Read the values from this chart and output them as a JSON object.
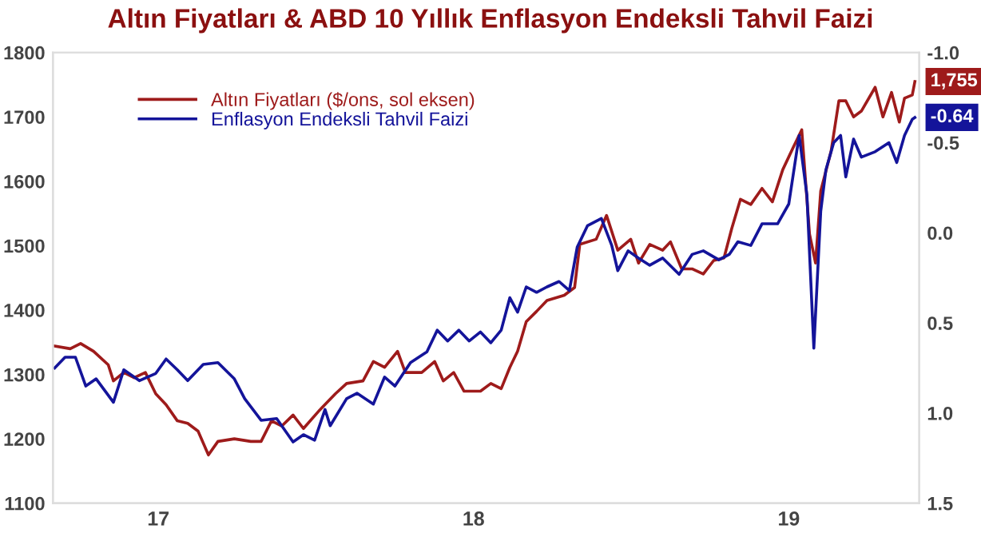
{
  "chart_data": {
    "type": "line",
    "title": "Altın Fiyatları & ABD 10 Yıllık Enflasyon Endeksli Tahvil Faizi",
    "xlim": [
      "2016-09-01",
      "2019-06-01"
    ],
    "xticks": [
      {
        "value": "2017-01-01",
        "label": "17"
      },
      {
        "value": "2018-01-01",
        "label": "18"
      },
      {
        "value": "2019-01-01",
        "label": "19"
      }
    ],
    "ylim": [
      1100,
      1800
    ],
    "yticks": [
      1100,
      1200,
      1300,
      1400,
      1500,
      1600,
      1700,
      1800
    ],
    "y2lim": [
      1.5,
      -1.0
    ],
    "y2ticks": [
      {
        "value": -1.0,
        "label": "-1.0"
      },
      -0.5,
      {
        "value": 0.0,
        "label": "0.0"
      },
      0.5,
      {
        "value": 1.0,
        "label": "1.0"
      },
      1.5
    ],
    "legend": "top left",
    "grid": false,
    "series": [
      {
        "name": "Altın Fiyatları ($/ons, sol eksen)",
        "color": "#9e1b1b",
        "x": [
          "2016-09-03",
          "2016-09-21",
          "2016-10-03",
          "2016-10-18",
          "2016-11-04",
          "2016-11-10",
          "2016-11-22",
          "2016-12-04",
          "2016-12-17",
          "2016-12-29",
          "2017-01-10",
          "2017-01-23",
          "2017-02-04",
          "2017-02-16",
          "2017-02-28",
          "2017-03-11",
          "2017-03-30",
          "2017-04-18",
          "2017-04-30",
          "2017-05-12",
          "2017-05-24",
          "2017-06-06",
          "2017-06-18",
          "2017-07-07",
          "2017-07-25",
          "2017-08-07",
          "2017-08-26",
          "2017-09-07",
          "2017-09-20",
          "2017-10-05",
          "2017-10-14",
          "2017-11-02",
          "2017-11-17",
          "2017-11-27",
          "2017-12-09",
          "2017-12-21",
          "2018-01-09",
          "2018-01-21",
          "2018-02-02",
          "2018-02-12",
          "2018-02-21",
          "2018-03-03",
          "2018-03-15",
          "2018-03-27",
          "2018-04-16",
          "2018-04-28",
          "2018-05-04",
          "2018-05-23",
          "2018-06-04",
          "2018-06-17",
          "2018-07-02",
          "2018-07-11",
          "2018-07-24",
          "2018-08-08",
          "2018-08-17",
          "2018-08-30",
          "2018-09-11",
          "2018-09-24",
          "2018-10-06",
          "2018-10-18",
          "2018-10-27",
          "2018-11-06",
          "2018-11-18",
          "2018-12-01",
          "2018-12-13",
          "2018-12-25",
          "2019-01-07",
          "2019-01-16",
          "2019-01-25",
          "2019-02-01",
          "2019-02-07",
          "2019-02-19",
          "2019-02-28",
          "2019-03-08",
          "2019-03-17",
          "2019-03-26",
          "2019-04-11",
          "2019-04-20",
          "2019-04-30",
          "2019-05-09",
          "2019-05-15",
          "2019-05-24",
          "2019-05-27"
        ],
        "values": [
          1344,
          1340,
          1348,
          1336,
          1315,
          1290,
          1303,
          1295,
          1303,
          1270,
          1253,
          1228,
          1224,
          1212,
          1175,
          1196,
          1200,
          1196,
          1196,
          1228,
          1220,
          1237,
          1216,
          1245,
          1270,
          1286,
          1290,
          1320,
          1311,
          1336,
          1303,
          1303,
          1320,
          1290,
          1303,
          1274,
          1274,
          1286,
          1278,
          1311,
          1336,
          1382,
          1398,
          1415,
          1423,
          1435,
          1502,
          1510,
          1547,
          1493,
          1510,
          1473,
          1502,
          1493,
          1506,
          1464,
          1464,
          1456,
          1477,
          1481,
          1527,
          1572,
          1564,
          1589,
          1568,
          1618,
          1655,
          1680,
          1518,
          1473,
          1585,
          1647,
          1725,
          1725,
          1700,
          1709,
          1746,
          1700,
          1738,
          1692,
          1729,
          1734,
          1755
        ]
      },
      {
        "name": "Enflasyon Endeksli Tahvil Faizi",
        "color": "#14149a",
        "axis": "y2",
        "x": [
          "2016-09-03",
          "2016-09-15",
          "2016-09-27",
          "2016-10-09",
          "2016-10-21",
          "2016-11-10",
          "2016-11-22",
          "2016-12-10",
          "2016-12-29",
          "2017-01-10",
          "2017-01-23",
          "2017-02-04",
          "2017-02-22",
          "2017-03-11",
          "2017-03-30",
          "2017-04-11",
          "2017-04-30",
          "2017-05-18",
          "2017-06-06",
          "2017-06-18",
          "2017-07-01",
          "2017-07-13",
          "2017-07-19",
          "2017-08-07",
          "2017-08-19",
          "2017-09-07",
          "2017-09-20",
          "2017-10-02",
          "2017-10-20",
          "2017-11-08",
          "2017-11-20",
          "2017-12-02",
          "2017-12-15",
          "2017-12-27",
          "2018-01-09",
          "2018-01-21",
          "2018-02-02",
          "2018-02-12",
          "2018-02-21",
          "2018-03-03",
          "2018-03-15",
          "2018-03-27",
          "2018-04-10",
          "2018-04-22",
          "2018-05-01",
          "2018-05-13",
          "2018-05-29",
          "2018-06-10",
          "2018-06-17",
          "2018-06-29",
          "2018-07-11",
          "2018-07-24",
          "2018-08-08",
          "2018-08-27",
          "2018-09-11",
          "2018-09-24",
          "2018-10-12",
          "2018-10-24",
          "2018-11-03",
          "2018-11-18",
          "2018-12-01",
          "2018-12-19",
          "2019-01-01",
          "2019-01-13",
          "2019-01-22",
          "2019-01-30",
          "2019-02-07",
          "2019-02-13",
          "2019-02-22",
          "2019-03-02",
          "2019-03-08",
          "2019-03-17",
          "2019-03-26",
          "2019-04-11",
          "2019-04-27",
          "2019-05-06",
          "2019-05-15",
          "2019-05-24",
          "2019-05-27"
        ],
        "values": [
          0.75,
          0.69,
          0.69,
          0.85,
          0.81,
          0.94,
          0.76,
          0.82,
          0.78,
          0.7,
          0.76,
          0.82,
          0.73,
          0.72,
          0.81,
          0.92,
          1.04,
          1.03,
          1.16,
          1.12,
          1.15,
          0.98,
          1.07,
          0.92,
          0.89,
          0.95,
          0.8,
          0.85,
          0.72,
          0.66,
          0.54,
          0.6,
          0.54,
          0.6,
          0.55,
          0.61,
          0.54,
          0.36,
          0.44,
          0.3,
          0.33,
          0.3,
          0.27,
          0.32,
          0.08,
          -0.04,
          -0.08,
          0.07,
          0.21,
          0.1,
          0.14,
          0.18,
          0.14,
          0.23,
          0.12,
          0.1,
          0.15,
          0.12,
          0.05,
          0.07,
          -0.05,
          -0.05,
          -0.16,
          -0.54,
          -0.21,
          0.64,
          -0.12,
          -0.35,
          -0.5,
          -0.54,
          -0.31,
          -0.52,
          -0.42,
          -0.45,
          -0.5,
          -0.39,
          -0.54,
          -0.63,
          -0.64
        ]
      }
    ],
    "annotations": [
      "1,755",
      "-0.64"
    ]
  }
}
